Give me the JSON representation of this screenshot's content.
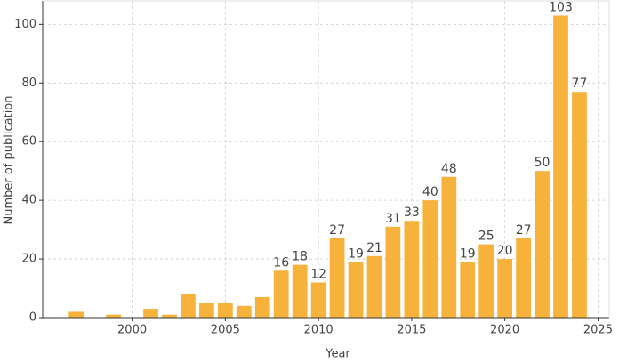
{
  "chart_data": {
    "type": "bar",
    "x_label": "Year",
    "y_label": "Number of publication",
    "x": [
      1997,
      1999,
      2001,
      2002,
      2003,
      2004,
      2005,
      2006,
      2007,
      2008,
      2009,
      2010,
      2011,
      2012,
      2013,
      2014,
      2015,
      2016,
      2017,
      2018,
      2019,
      2020,
      2021,
      2022,
      2023,
      2024
    ],
    "values": [
      2,
      1,
      3,
      1,
      8,
      5,
      5,
      4,
      7,
      16,
      18,
      12,
      27,
      19,
      21,
      31,
      33,
      40,
      48,
      19,
      25,
      20,
      27,
      50,
      103,
      77
    ],
    "value_labels": [
      null,
      null,
      null,
      null,
      null,
      null,
      null,
      null,
      null,
      "16",
      "18",
      "12",
      "27",
      "19",
      "21",
      "31",
      "33",
      "40",
      "48",
      "19",
      "25",
      "20",
      "27",
      "50",
      "103",
      "77"
    ],
    "color": "#f7b23b",
    "xlim": [
      1995.2,
      2025.6
    ],
    "xticks": [
      2000,
      2005,
      2010,
      2015,
      2020,
      2025
    ],
    "ylim": [
      0,
      108
    ],
    "yticks": [
      0,
      20,
      40,
      60,
      80,
      100
    ],
    "grid": true
  }
}
